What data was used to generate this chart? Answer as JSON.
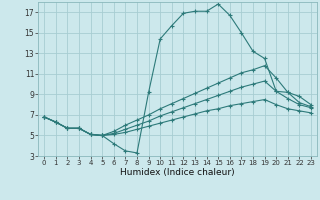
{
  "background_color": "#cce8ec",
  "grid_color": "#a8cdd2",
  "line_color": "#2d7a7a",
  "xlabel": "Humidex (Indice chaleur)",
  "xlim": [
    -0.5,
    23.5
  ],
  "ylim": [
    3,
    18
  ],
  "yticks": [
    3,
    5,
    7,
    9,
    11,
    13,
    15,
    17
  ],
  "xticks": [
    0,
    1,
    2,
    3,
    4,
    5,
    6,
    7,
    8,
    9,
    10,
    11,
    12,
    13,
    14,
    15,
    16,
    17,
    18,
    19,
    20,
    21,
    22,
    23
  ],
  "lines": [
    {
      "x": [
        0,
        1,
        2,
        3,
        4,
        5,
        6,
        7,
        8,
        9,
        10,
        11,
        12,
        13,
        14,
        15,
        16,
        17,
        18,
        19,
        20,
        21,
        22,
        23
      ],
      "y": [
        6.8,
        6.3,
        5.7,
        5.7,
        5.1,
        5.0,
        4.2,
        3.5,
        3.3,
        9.2,
        14.4,
        15.7,
        16.9,
        17.1,
        17.1,
        17.8,
        16.7,
        15.0,
        13.2,
        12.5,
        9.3,
        9.2,
        8.8,
        8.0
      ]
    },
    {
      "x": [
        0,
        1,
        2,
        3,
        4,
        5,
        6,
        7,
        8,
        9,
        10,
        11,
        12,
        13,
        14,
        15,
        16,
        17,
        18,
        19,
        20,
        21,
        22,
        23
      ],
      "y": [
        6.8,
        6.3,
        5.7,
        5.7,
        5.1,
        5.0,
        5.4,
        6.0,
        6.5,
        7.0,
        7.6,
        8.1,
        8.6,
        9.1,
        9.6,
        10.1,
        10.6,
        11.1,
        11.4,
        11.8,
        10.6,
        9.2,
        8.2,
        7.8
      ]
    },
    {
      "x": [
        0,
        1,
        2,
        3,
        4,
        5,
        6,
        7,
        8,
        9,
        10,
        11,
        12,
        13,
        14,
        15,
        16,
        17,
        18,
        19,
        20,
        21,
        22,
        23
      ],
      "y": [
        6.8,
        6.3,
        5.7,
        5.7,
        5.1,
        5.0,
        5.2,
        5.6,
        6.0,
        6.4,
        6.9,
        7.3,
        7.7,
        8.1,
        8.5,
        8.9,
        9.3,
        9.7,
        10.0,
        10.3,
        9.3,
        8.6,
        8.0,
        7.7
      ]
    },
    {
      "x": [
        0,
        1,
        2,
        3,
        4,
        5,
        6,
        7,
        8,
        9,
        10,
        11,
        12,
        13,
        14,
        15,
        16,
        17,
        18,
        19,
        20,
        21,
        22,
        23
      ],
      "y": [
        6.8,
        6.3,
        5.7,
        5.7,
        5.1,
        5.0,
        5.1,
        5.3,
        5.6,
        5.9,
        6.2,
        6.5,
        6.8,
        7.1,
        7.4,
        7.6,
        7.9,
        8.1,
        8.3,
        8.5,
        8.0,
        7.6,
        7.4,
        7.2
      ]
    }
  ]
}
